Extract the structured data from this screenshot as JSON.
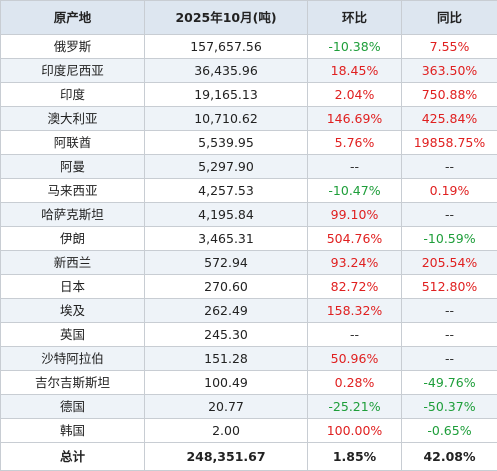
{
  "table": {
    "headers": [
      "原产地",
      "2025年10月(吨)",
      "环比",
      "同比"
    ],
    "rows": [
      {
        "origin": "俄罗斯",
        "qty": "157,657.56",
        "mom": "-10.38%",
        "yoy": "7.55%"
      },
      {
        "origin": "印度尼西亚",
        "qty": "36,435.96",
        "mom": "18.45%",
        "yoy": "363.50%"
      },
      {
        "origin": "印度",
        "qty": "19,165.13",
        "mom": "2.04%",
        "yoy": "750.88%"
      },
      {
        "origin": "澳大利亚",
        "qty": "10,710.62",
        "mom": "146.69%",
        "yoy": "425.84%"
      },
      {
        "origin": "阿联酋",
        "qty": "5,539.95",
        "mom": "5.76%",
        "yoy": "19858.75%"
      },
      {
        "origin": "阿曼",
        "qty": "5,297.90",
        "mom": "--",
        "yoy": "--"
      },
      {
        "origin": "马来西亚",
        "qty": "4,257.53",
        "mom": "-10.47%",
        "yoy": "0.19%"
      },
      {
        "origin": "哈萨克斯坦",
        "qty": "4,195.84",
        "mom": "99.10%",
        "yoy": "--"
      },
      {
        "origin": "伊朗",
        "qty": "3,465.31",
        "mom": "504.76%",
        "yoy": "-10.59%"
      },
      {
        "origin": "新西兰",
        "qty": "572.94",
        "mom": "93.24%",
        "yoy": "205.54%"
      },
      {
        "origin": "日本",
        "qty": "270.60",
        "mom": "82.72%",
        "yoy": "512.80%"
      },
      {
        "origin": "埃及",
        "qty": "262.49",
        "mom": "158.32%",
        "yoy": "--"
      },
      {
        "origin": "英国",
        "qty": "245.30",
        "mom": "--",
        "yoy": "--"
      },
      {
        "origin": "沙特阿拉伯",
        "qty": "151.28",
        "mom": "50.96%",
        "yoy": "--"
      },
      {
        "origin": "吉尔吉斯斯坦",
        "qty": "100.49",
        "mom": "0.28%",
        "yoy": "-49.76%"
      },
      {
        "origin": "德国",
        "qty": "20.77",
        "mom": "-25.21%",
        "yoy": "-50.37%"
      },
      {
        "origin": "韩国",
        "qty": "2.00",
        "mom": "100.00%",
        "yoy": "-0.65%"
      }
    ],
    "total": {
      "origin": "总计",
      "qty": "248,351.67",
      "mom": "1.85%",
      "yoy": "42.08%"
    }
  },
  "colors": {
    "header_bg": "#dde6f0",
    "alt_row_bg": "#eef3f8",
    "positive": "#e02020",
    "negative": "#1e9e3a",
    "border": "#c8cdd3"
  }
}
